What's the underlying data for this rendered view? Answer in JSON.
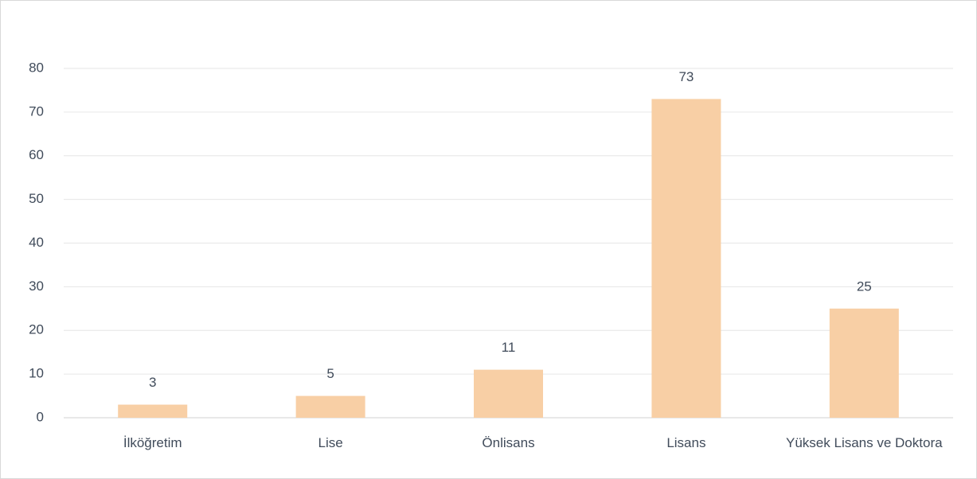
{
  "chart_data": {
    "type": "bar",
    "categories": [
      "İlköğretim",
      "Lise",
      "Önlisans",
      "Lisans",
      "Yüksek Lisans ve Doktora"
    ],
    "values": [
      3,
      5,
      11,
      73,
      25
    ],
    "color": "#f8cfa5",
    "ylim": [
      0,
      80
    ],
    "yticks": [
      0,
      10,
      20,
      30,
      40,
      50,
      60,
      70,
      80
    ],
    "grid": true
  }
}
